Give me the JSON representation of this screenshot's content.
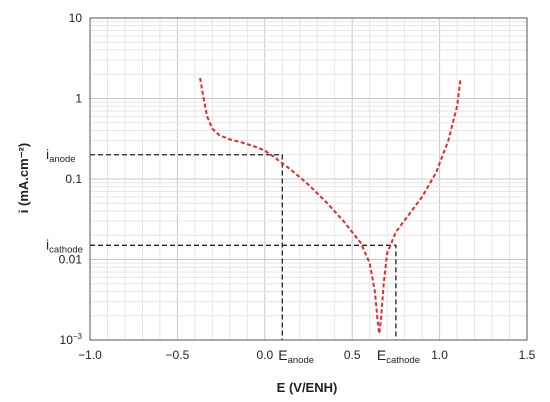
{
  "chart_data": {
    "type": "line",
    "title": "",
    "xlabel": "E (V/ENH)",
    "ylabel": "i (mA.cm⁻²)",
    "xlim": [
      -1.0,
      1.5
    ],
    "ylim": [
      0.001,
      10
    ],
    "y_scale": "log",
    "grid": true,
    "x_ticks": [
      {
        "value": -1.0,
        "label": "−1.0"
      },
      {
        "value": -0.5,
        "label": "−0.5"
      },
      {
        "value": 0.0,
        "label": "0.0"
      },
      {
        "value": 0.5,
        "label": "0.5"
      },
      {
        "value": 1.0,
        "label": "1.0"
      },
      {
        "value": 1.5,
        "label": "1.5"
      }
    ],
    "y_ticks": [
      {
        "value": 10,
        "label": "10"
      },
      {
        "value": 1,
        "label": "1"
      },
      {
        "value": 0.1,
        "label": "0.1"
      },
      {
        "value": 0.01,
        "label": "0.01"
      },
      {
        "value": 0.001,
        "label": "10",
        "sup": "−3"
      }
    ],
    "series": [
      {
        "color": "#e8282b",
        "style": "dashed",
        "points": [
          [
            -0.37,
            1.8
          ],
          [
            -0.35,
            1.0
          ],
          [
            -0.33,
            0.6
          ],
          [
            -0.3,
            0.42
          ],
          [
            -0.26,
            0.35
          ],
          [
            -0.2,
            0.31
          ],
          [
            -0.12,
            0.28
          ],
          [
            -0.05,
            0.25
          ],
          [
            0.0,
            0.225
          ],
          [
            0.05,
            0.19
          ],
          [
            0.15,
            0.13
          ],
          [
            0.25,
            0.085
          ],
          [
            0.35,
            0.052
          ],
          [
            0.45,
            0.03
          ],
          [
            0.55,
            0.016
          ],
          [
            0.6,
            0.009
          ],
          [
            0.63,
            0.004
          ],
          [
            0.645,
            0.0018
          ],
          [
            0.655,
            0.0012
          ],
          [
            0.665,
            0.0018
          ],
          [
            0.68,
            0.005
          ],
          [
            0.7,
            0.012
          ],
          [
            0.75,
            0.022
          ],
          [
            0.82,
            0.035
          ],
          [
            0.9,
            0.06
          ],
          [
            0.98,
            0.12
          ],
          [
            1.05,
            0.3
          ],
          [
            1.1,
            0.8
          ],
          [
            1.12,
            1.8
          ]
        ]
      }
    ],
    "annotations": {
      "i_anode": {
        "base": "i",
        "sub": "anode",
        "value": 0.2
      },
      "i_cathode": {
        "base": "i",
        "sub": "cathode",
        "value": 0.015
      },
      "e_anode": {
        "base": "E",
        "sub": "anode",
        "value": 0.1
      },
      "e_cathode": {
        "base": "E",
        "sub": "cathode",
        "value": 0.75
      }
    }
  }
}
